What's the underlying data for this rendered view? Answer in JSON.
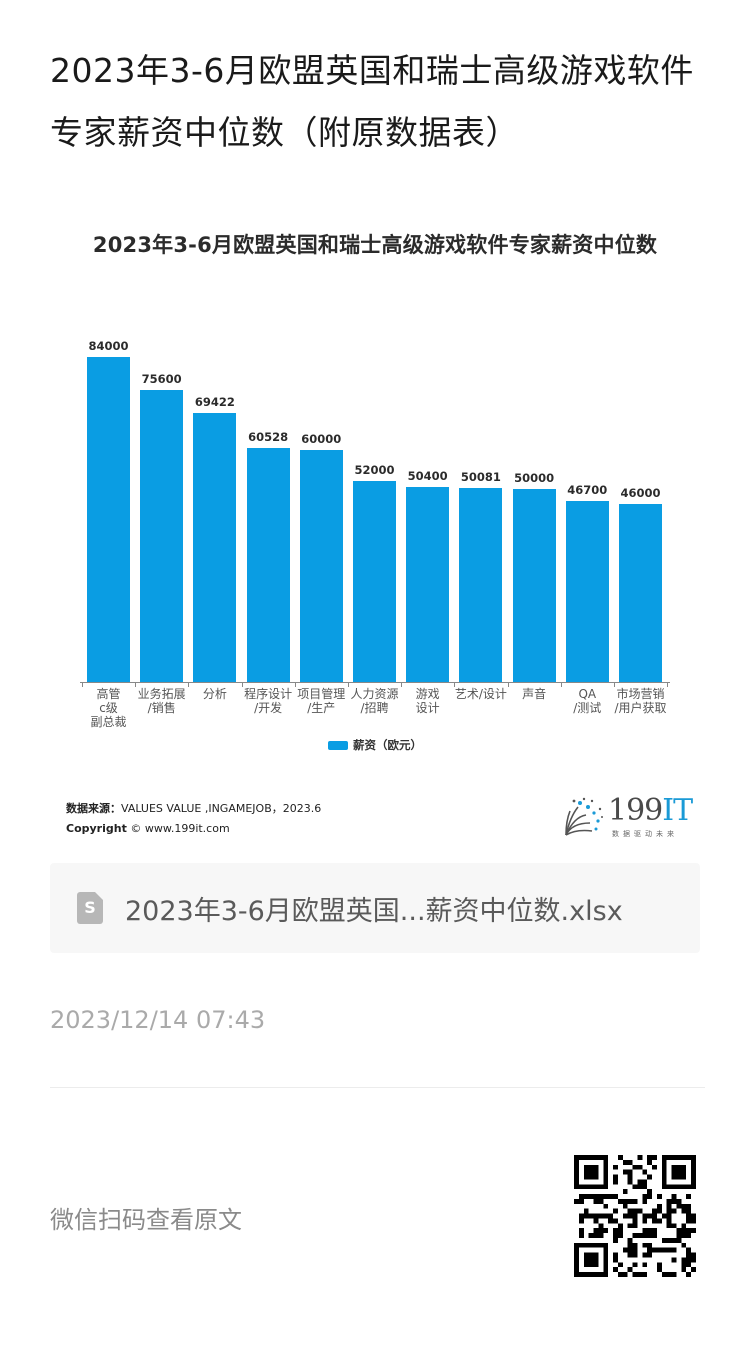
{
  "article": {
    "title": "2023年3-6月欧盟英国和瑞士高级游戏软件专家薪资中位数（附原数据表）"
  },
  "chart_data": {
    "type": "bar",
    "title": "2023年3-6月欧盟英国和瑞士高级游戏软件专家薪资中位数",
    "categories": [
      "高管\nc级\n副总裁",
      "业务拓展\n/销售",
      "分析",
      "程序设计\n/开发",
      "项目管理\n/生产",
      "人力资源\n/招聘",
      "游戏\n设计",
      "艺术/设计",
      "声音",
      "QA\n/测试",
      "市场营销\n/用户获取"
    ],
    "series": [
      {
        "name": "薪资（欧元）",
        "values": [
          84000,
          75600,
          69422,
          60528,
          60000,
          52000,
          50400,
          50081,
          50000,
          46700,
          46000
        ]
      }
    ],
    "value_labels": [
      "84000",
      "75600",
      "69422",
      "60528",
      "60000",
      "52000",
      "50400",
      "50081",
      "50000",
      "46700",
      "46000"
    ],
    "xlabel": "",
    "ylabel": "",
    "ylim": [
      0,
      84000
    ],
    "grid": false,
    "legend_position": "bottom",
    "color": "#0a9de3"
  },
  "chart_footer": {
    "source_label": "数据来源：",
    "source_text": "VALUES VALUE ,INGAMEJOB，2023.6",
    "copyright_label": "Copyright",
    "copyright_text": "© www.199it.com",
    "logo_main": "199",
    "logo_accent": "IT",
    "logo_tagline": "数据驱动未来"
  },
  "attachment": {
    "icon": "spreadsheet-file-icon",
    "icon_letter": "S",
    "file_name": "2023年3-6月欧盟英国...薪资中位数.xlsx"
  },
  "meta": {
    "timestamp": "2023/12/14 07:43"
  },
  "footer": {
    "scan_label": "微信扫码查看原文",
    "qr_icon": "qr-code-icon"
  }
}
